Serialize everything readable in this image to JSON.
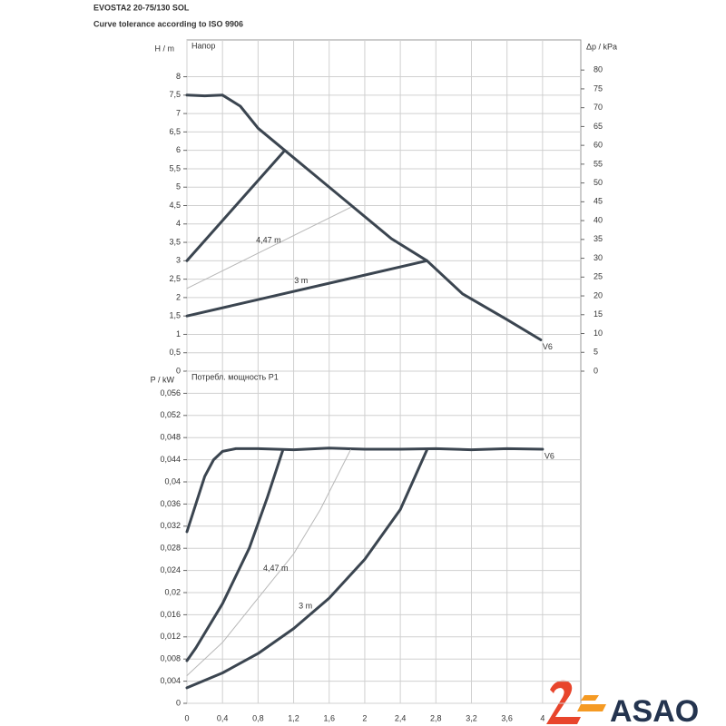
{
  "header": {
    "title": "EVOSTA2 20-75/130 SOL",
    "subtitle": "Curve tolerance according to ISO 9906"
  },
  "logo": {
    "text": "ASAO"
  },
  "chart_data": [
    {
      "type": "line",
      "title": "Напор",
      "y_label": "H / m",
      "y2_label": "Δp / kPa",
      "xlim": [
        0,
        4.43
      ],
      "ylim": [
        0,
        9
      ],
      "y2lim": [
        0,
        88
      ],
      "grid": true,
      "color": "#3b4550",
      "yticks": [
        0,
        {
          "value": 0.5,
          "label": "0,5"
        },
        1,
        {
          "value": 1.5,
          "label": "1,5"
        },
        2,
        {
          "value": 2.5,
          "label": "2,5"
        },
        3,
        {
          "value": 3.5,
          "label": "3,5"
        },
        4,
        {
          "value": 4.5,
          "label": "4,5"
        },
        5,
        {
          "value": 5.5,
          "label": "5,5"
        },
        6,
        {
          "value": 6.5,
          "label": "6,5"
        },
        7,
        {
          "value": 7.5,
          "label": "7,5"
        },
        8
      ],
      "y2ticks": [
        0,
        5,
        10,
        15,
        20,
        25,
        30,
        35,
        40,
        45,
        50,
        55,
        60,
        65,
        70,
        75,
        80
      ],
      "series": [
        {
          "name": "V6",
          "color": "#3b4550",
          "x": [
            0,
            0.2,
            0.4,
            0.6,
            0.8,
            1.1,
            1.4,
            1.8,
            2.3,
            2.7,
            3.1,
            3.6,
            3.98
          ],
          "values": [
            7.5,
            7.48,
            7.5,
            7.2,
            6.6,
            6.0,
            5.4,
            4.6,
            3.6,
            3.0,
            2.1,
            1.4,
            0.85
          ]
        },
        {
          "color": "#3b4550",
          "x": [
            0,
            1.1
          ],
          "values": [
            3,
            6
          ]
        },
        {
          "name": "4,47 m",
          "color": "#b8b8b8",
          "x": [
            0,
            1.84
          ],
          "values": [
            2.25,
            4.45
          ]
        },
        {
          "name": "3 m",
          "color": "#3b4550",
          "x": [
            0,
            2.7
          ],
          "values": [
            1.5,
            3.0
          ]
        }
      ]
    },
    {
      "type": "line",
      "title": "Потребл. мощность P1",
      "y_label": "P / kW",
      "xlim": [
        0,
        4.43
      ],
      "ylim": [
        0,
        0.06
      ],
      "grid": true,
      "color": "#3b4550",
      "xticks": [
        0,
        {
          "value": 0.4,
          "label": "0,4"
        },
        {
          "value": 0.8,
          "label": "0,8"
        },
        {
          "value": 1.2,
          "label": "1,2"
        },
        {
          "value": 1.6,
          "label": "1,6"
        },
        2,
        {
          "value": 2.4,
          "label": "2,4"
        },
        {
          "value": 2.8,
          "label": "2,8"
        },
        {
          "value": 3.2,
          "label": "3,2"
        },
        {
          "value": 3.6,
          "label": "3,6"
        },
        4
      ],
      "yticks": [
        0,
        {
          "value": 0.004,
          "label": "0,004"
        },
        {
          "value": 0.008,
          "label": "0,008"
        },
        {
          "value": 0.012,
          "label": "0,012"
        },
        {
          "value": 0.016,
          "label": "0,016"
        },
        {
          "value": 0.02,
          "label": "0,02"
        },
        {
          "value": 0.024,
          "label": "0,024"
        },
        {
          "value": 0.028,
          "label": "0,028"
        },
        {
          "value": 0.032,
          "label": "0,032"
        },
        {
          "value": 0.036,
          "label": "0,036"
        },
        {
          "value": 0.04,
          "label": "0,04"
        },
        {
          "value": 0.044,
          "label": "0,044"
        },
        {
          "value": 0.048,
          "label": "0,048"
        },
        {
          "value": 0.052,
          "label": "0,052"
        },
        {
          "value": 0.056,
          "label": "0,056"
        }
      ],
      "series": [
        {
          "name": "V6",
          "color": "#3b4550",
          "x": [
            0,
            0.1,
            0.2,
            0.3,
            0.4,
            0.55,
            0.8,
            1.2,
            1.6,
            2.0,
            2.4,
            2.8,
            3.2,
            3.6,
            4.0
          ],
          "values": [
            0.031,
            0.036,
            0.041,
            0.044,
            0.0455,
            0.046,
            0.046,
            0.0458,
            0.0461,
            0.0459,
            0.0459,
            0.046,
            0.0458,
            0.046,
            0.0459
          ]
        },
        {
          "color": "#3b4550",
          "x": [
            0,
            0.1,
            0.4,
            0.7,
            0.9,
            1.08
          ],
          "values": [
            0.0077,
            0.01,
            0.018,
            0.028,
            0.037,
            0.0458
          ]
        },
        {
          "name": "4,47 m",
          "color": "#b8b8b8",
          "x": [
            0,
            0.4,
            0.8,
            1.2,
            1.5,
            1.84
          ],
          "values": [
            0.005,
            0.011,
            0.019,
            0.027,
            0.035,
            0.0458
          ]
        },
        {
          "name": "3 m",
          "color": "#3b4550",
          "x": [
            0,
            0.4,
            0.8,
            1.2,
            1.6,
            2.0,
            2.4,
            2.7
          ],
          "values": [
            0.0028,
            0.0055,
            0.009,
            0.0135,
            0.019,
            0.026,
            0.035,
            0.0458
          ]
        }
      ]
    }
  ]
}
